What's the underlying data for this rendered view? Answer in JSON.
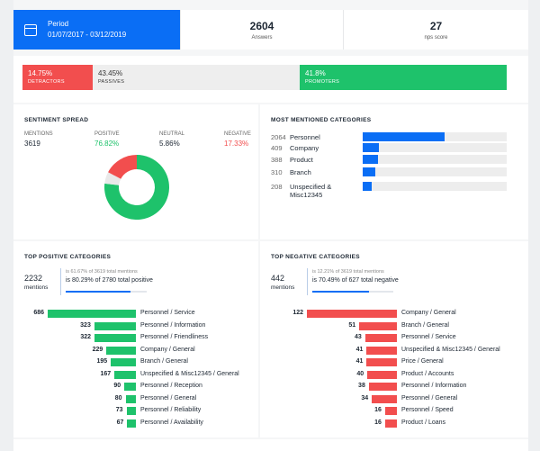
{
  "period": {
    "label": "Period",
    "value": "01/07/2017 - 03/12/2019",
    "icon": "calendar-icon"
  },
  "answers": {
    "value": "2604",
    "label": "Answers"
  },
  "nps": {
    "value": "27",
    "label": "nps score"
  },
  "nps_bar": {
    "detractors": {
      "value": "14.75%",
      "label": "DETRACTORS",
      "color": "#f24e4e"
    },
    "passives": {
      "value": "43.45%",
      "label": "PASSIVES",
      "color": "#eeeeee"
    },
    "promoters": {
      "value": "41.8%",
      "label": "PROMOTERS",
      "color": "#1ec26b"
    }
  },
  "sentiment": {
    "title": "SENTIMENT SPREAD",
    "mentions_label": "MENTIONS",
    "mentions_value": "3619",
    "positive_label": "POSITIVE",
    "positive_value": "76.82%",
    "neutral_label": "NEUTRAL",
    "neutral_value": "5.86%",
    "negative_label": "NEGATIVE",
    "negative_value": "17.33%"
  },
  "most_mentioned": {
    "title": "MOST MENTIONED CATEGORIES",
    "items": [
      {
        "count": "2064",
        "name": "Personnel",
        "fraction": 0.57
      },
      {
        "count": "409",
        "name": "Company",
        "fraction": 0.11
      },
      {
        "count": "388",
        "name": "Product",
        "fraction": 0.105
      },
      {
        "count": "310",
        "name": "Branch",
        "fraction": 0.085
      },
      {
        "count": "208",
        "name": "Unspecified & Misc12345",
        "fraction": 0.06
      }
    ]
  },
  "top_positive": {
    "title": "TOP POSITIVE CATEGORIES",
    "count": "2232",
    "mentions_label": "mentions",
    "small": "is 61.67% of 3619 total mentions",
    "main": "is 80.29% of 2780 total positive",
    "fraction": 0.8029,
    "color": "#1ec26b",
    "items": [
      {
        "value": 686,
        "label": "Personnel / Service"
      },
      {
        "value": 323,
        "label": "Personnel / Information"
      },
      {
        "value": 322,
        "label": "Personnel / Friendliness"
      },
      {
        "value": 229,
        "label": "Company / General"
      },
      {
        "value": 195,
        "label": "Branch / General"
      },
      {
        "value": 167,
        "label": "Unspecified & Misc12345 / General"
      },
      {
        "value": 90,
        "label": "Personnel / Reception"
      },
      {
        "value": 80,
        "label": "Personnel / General"
      },
      {
        "value": 73,
        "label": "Personnel / Reliability"
      },
      {
        "value": 67,
        "label": "Personnel / Availability"
      }
    ]
  },
  "top_negative": {
    "title": "TOP NEGATIVE CATEGORIES",
    "count": "442",
    "mentions_label": "mentions",
    "small": "is 12.21% of 3619 total mentions",
    "main": "is 70.49% of 627 total negative",
    "fraction": 0.7049,
    "color": "#f24e4e",
    "items": [
      {
        "value": 122,
        "label": "Company / General"
      },
      {
        "value": 51,
        "label": "Branch / General"
      },
      {
        "value": 43,
        "label": "Personnel / Service"
      },
      {
        "value": 41,
        "label": "Unspecified & Misc12345 / General"
      },
      {
        "value": 41,
        "label": "Price / General"
      },
      {
        "value": 40,
        "label": "Product / Accounts"
      },
      {
        "value": 38,
        "label": "Personnel / Information"
      },
      {
        "value": 34,
        "label": "Personnel / General"
      },
      {
        "value": 16,
        "label": "Personnel / Speed"
      },
      {
        "value": 16,
        "label": "Product / Loans"
      }
    ]
  },
  "chart_data": [
    {
      "type": "pie",
      "categories": [
        "POSITIVE",
        "NEUTRAL",
        "NEGATIVE"
      ],
      "values": [
        76.82,
        5.86,
        17.33
      ],
      "title": "SENTIMENT SPREAD"
    },
    {
      "type": "bar",
      "title": "MOST MENTIONED CATEGORIES",
      "categories": [
        "Personnel",
        "Company",
        "Product",
        "Branch",
        "Unspecified & Misc12345"
      ],
      "values": [
        2064,
        409,
        388,
        310,
        208
      ]
    },
    {
      "type": "bar",
      "title": "TOP POSITIVE CATEGORIES",
      "categories": [
        "Personnel / Service",
        "Personnel / Information",
        "Personnel / Friendliness",
        "Company / General",
        "Branch / General",
        "Unspecified & Misc12345 / General",
        "Personnel / Reception",
        "Personnel / General",
        "Personnel / Reliability",
        "Personnel / Availability"
      ],
      "values": [
        686,
        323,
        322,
        229,
        195,
        167,
        90,
        80,
        73,
        67
      ]
    },
    {
      "type": "bar",
      "title": "TOP NEGATIVE CATEGORIES",
      "categories": [
        "Company / General",
        "Branch / General",
        "Personnel / Service",
        "Unspecified & Misc12345 / General",
        "Price / General",
        "Product / Accounts",
        "Personnel / Information",
        "Personnel / General",
        "Personnel / Speed",
        "Product / Loans"
      ],
      "values": [
        122,
        51,
        43,
        41,
        41,
        40,
        38,
        34,
        16,
        16
      ]
    }
  ]
}
